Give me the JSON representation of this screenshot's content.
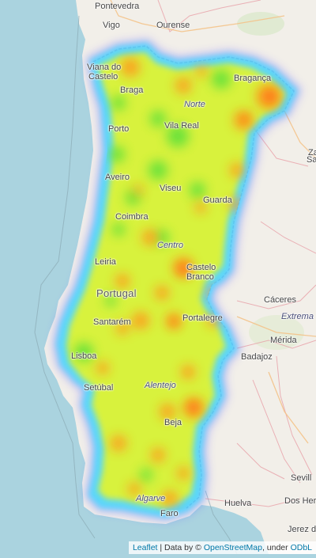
{
  "map": {
    "places": [
      {
        "name": "Pontevedra",
        "kind": "city"
      },
      {
        "name": "Vigo",
        "kind": "city"
      },
      {
        "name": "Ourense",
        "kind": "city"
      },
      {
        "name": "Viana do",
        "kind": "city"
      },
      {
        "name": "Castelo",
        "kind": "city"
      },
      {
        "name": "Braga",
        "kind": "city"
      },
      {
        "name": "Bragança",
        "kind": "city"
      },
      {
        "name": "Norte",
        "kind": "region"
      },
      {
        "name": "Porto",
        "kind": "city"
      },
      {
        "name": "Vila Real",
        "kind": "city"
      },
      {
        "name": "Aveiro",
        "kind": "city"
      },
      {
        "name": "Viseu",
        "kind": "city"
      },
      {
        "name": "Guarda",
        "kind": "city"
      },
      {
        "name": "Sa",
        "kind": "city"
      },
      {
        "name": "Coimbra",
        "kind": "city"
      },
      {
        "name": "Centro",
        "kind": "region"
      },
      {
        "name": "Leiria",
        "kind": "city"
      },
      {
        "name": "Castelo",
        "kind": "city"
      },
      {
        "name": "Branco",
        "kind": "city"
      },
      {
        "name": "Portugal",
        "kind": "country"
      },
      {
        "name": "Cáceres",
        "kind": "city"
      },
      {
        "name": "Santarém",
        "kind": "city"
      },
      {
        "name": "Portalegre",
        "kind": "city"
      },
      {
        "name": "Extrema",
        "kind": "region"
      },
      {
        "name": "Mérida",
        "kind": "city"
      },
      {
        "name": "Lisboa",
        "kind": "city"
      },
      {
        "name": "Badajoz",
        "kind": "city"
      },
      {
        "name": "Setúbal",
        "kind": "city"
      },
      {
        "name": "Alentejo",
        "kind": "region"
      },
      {
        "name": "Beja",
        "kind": "city"
      },
      {
        "name": "Sevill",
        "kind": "city"
      },
      {
        "name": "Algarve",
        "kind": "region"
      },
      {
        "name": "Huelva",
        "kind": "city"
      },
      {
        "name": "Dos Her",
        "kind": "city"
      },
      {
        "name": "Faro",
        "kind": "city"
      },
      {
        "name": "Jerez de",
        "kind": "city"
      },
      {
        "name": "Za",
        "kind": "city"
      }
    ],
    "heat_colors": [
      "#0000ff",
      "#00ffff",
      "#00ff00",
      "#ffff00",
      "#ff8000",
      "#ff0000"
    ]
  },
  "attribution": {
    "leaflet": "Leaflet",
    "sep": " | Data by © ",
    "osm": "OpenStreetMap",
    "under": ", under ",
    "odbl": "ODbL"
  }
}
